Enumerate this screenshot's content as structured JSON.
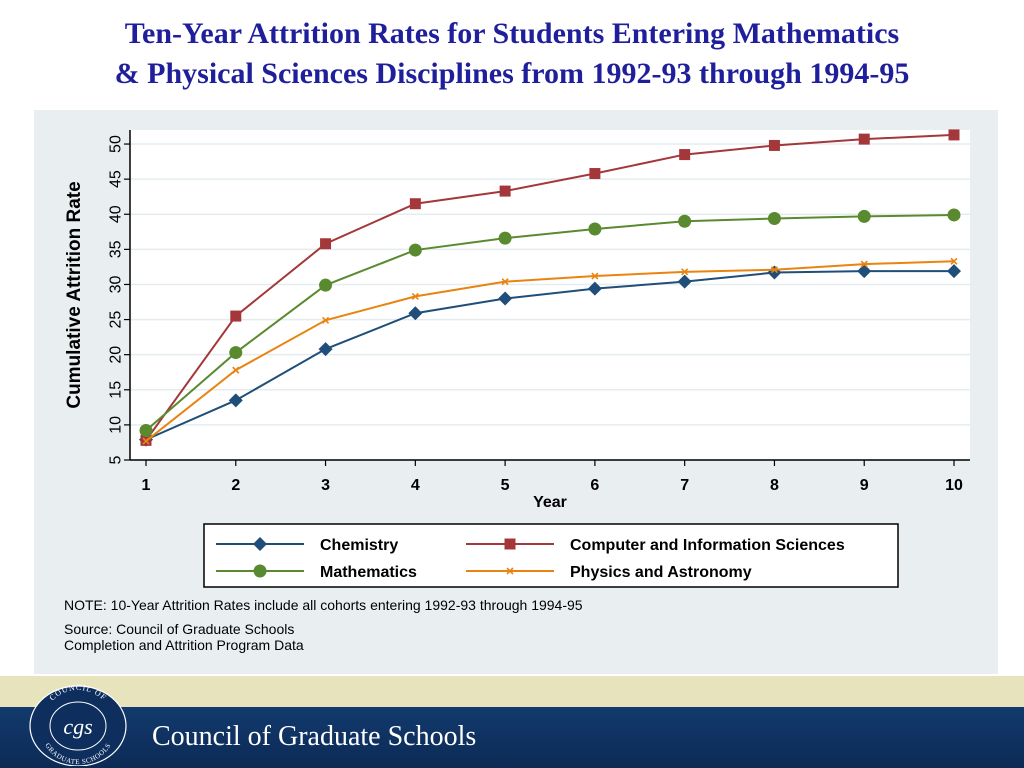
{
  "slide": {
    "title_line1": "Ten-Year Attrition Rates for Students Entering Mathematics",
    "title_line2": "& Physical Sciences Disciplines from 1992-93 through 1994-95",
    "note": "NOTE: 10-Year Attrition Rates include all cohorts entering 1992-93 through 1994-95",
    "source_line1": "Source: Council of Graduate Schools",
    "source_line2": "Completion and Attrition Program Data",
    "footer_name": "Council of Graduate Schools",
    "logo_text": {
      "ring_top": "COUNCIL OF",
      "ring_bottom": "GRADUATE SCHOOLS",
      "monogram": "cgs"
    }
  },
  "chart_data": {
    "type": "line",
    "title": "",
    "xlabel": "Year",
    "ylabel": "Cumulative Attrition Rate",
    "x": [
      1,
      2,
      3,
      4,
      5,
      6,
      7,
      8,
      9,
      10
    ],
    "xlim": [
      1,
      10
    ],
    "ylim": [
      5,
      52
    ],
    "yticks": [
      5,
      10,
      15,
      20,
      25,
      30,
      35,
      40,
      45,
      50
    ],
    "grid": "horizontal",
    "legend_position": "bottom",
    "series": [
      {
        "name": "Chemistry",
        "color": "#1f4e79",
        "marker": "diamond",
        "values": [
          7.9,
          13.5,
          20.8,
          25.9,
          28.0,
          29.4,
          30.4,
          31.7,
          31.9,
          31.9
        ]
      },
      {
        "name": "Computer and Information Sciences",
        "color": "#a4373a",
        "marker": "square",
        "values": [
          7.8,
          25.5,
          35.8,
          41.5,
          43.3,
          45.8,
          48.5,
          49.8,
          50.7,
          51.3
        ]
      },
      {
        "name": "Mathematics",
        "color": "#5a8a2f",
        "marker": "circle",
        "values": [
          9.2,
          20.3,
          29.9,
          34.9,
          36.6,
          37.9,
          39.0,
          39.4,
          39.7,
          39.9
        ]
      },
      {
        "name": "Physics and Astronomy",
        "color": "#e8840f",
        "marker": "x",
        "values": [
          7.7,
          17.8,
          24.9,
          28.3,
          30.4,
          31.2,
          31.8,
          32.1,
          32.9,
          33.3
        ]
      }
    ]
  }
}
